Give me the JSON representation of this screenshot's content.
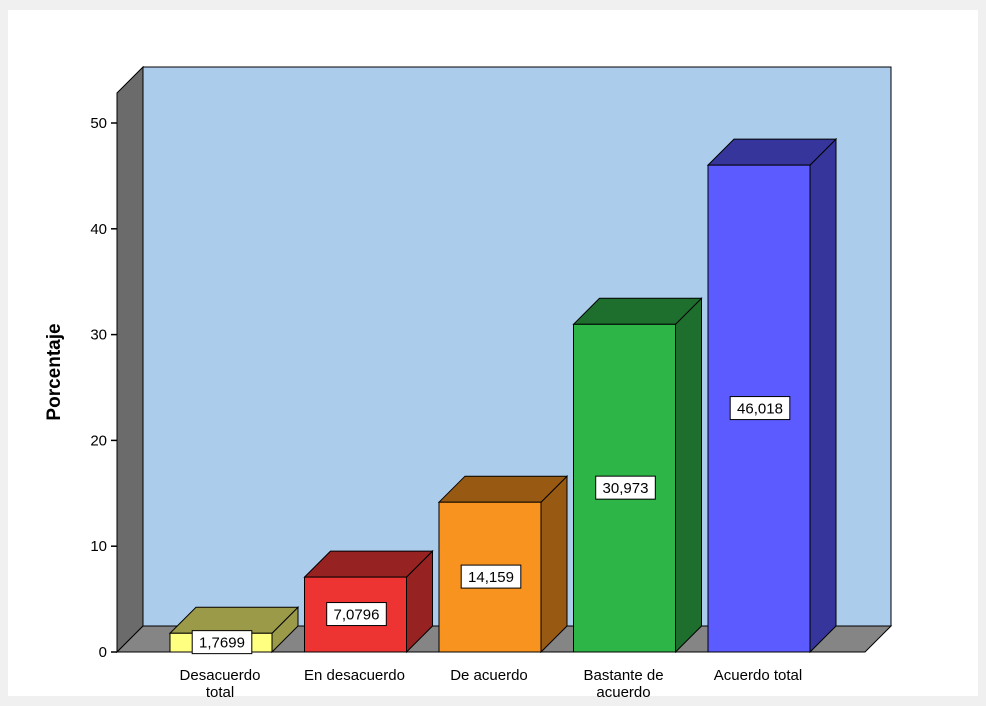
{
  "chart_data": {
    "type": "bar",
    "categories": [
      [
        "Desacuerdo",
        "total"
      ],
      [
        "En desacuerdo"
      ],
      [
        "De acuerdo"
      ],
      [
        "Bastante de",
        "acuerdo"
      ],
      [
        "Acuerdo total"
      ]
    ],
    "values": [
      1.7699,
      7.0796,
      14.159,
      30.973,
      46.018
    ],
    "data_labels": [
      "1,7699",
      "7,0796",
      "14,159",
      "30,973",
      "46,018"
    ],
    "ylabel": "Porcentaje",
    "xlabel": "",
    "ylim": [
      0,
      50
    ],
    "yticks": [
      0,
      10,
      20,
      30,
      40,
      50
    ],
    "grid": false,
    "legend": "none",
    "style": "3d",
    "colors": {
      "back_wall": "#acccec",
      "floor": "#858585",
      "side_wall": "#6b6b6b",
      "bars": [
        {
          "front": "#ffff80",
          "top": "#9a9a48",
          "side": "#9a9a48"
        },
        {
          "front": "#ee3333",
          "top": "#972222",
          "side": "#972222"
        },
        {
          "front": "#f7931e",
          "top": "#985a12",
          "side": "#985a12"
        },
        {
          "front": "#2db548",
          "top": "#1e6e2e",
          "side": "#1e6e2e"
        },
        {
          "front": "#5b5bff",
          "top": "#35359c",
          "side": "#35359c"
        }
      ]
    }
  }
}
